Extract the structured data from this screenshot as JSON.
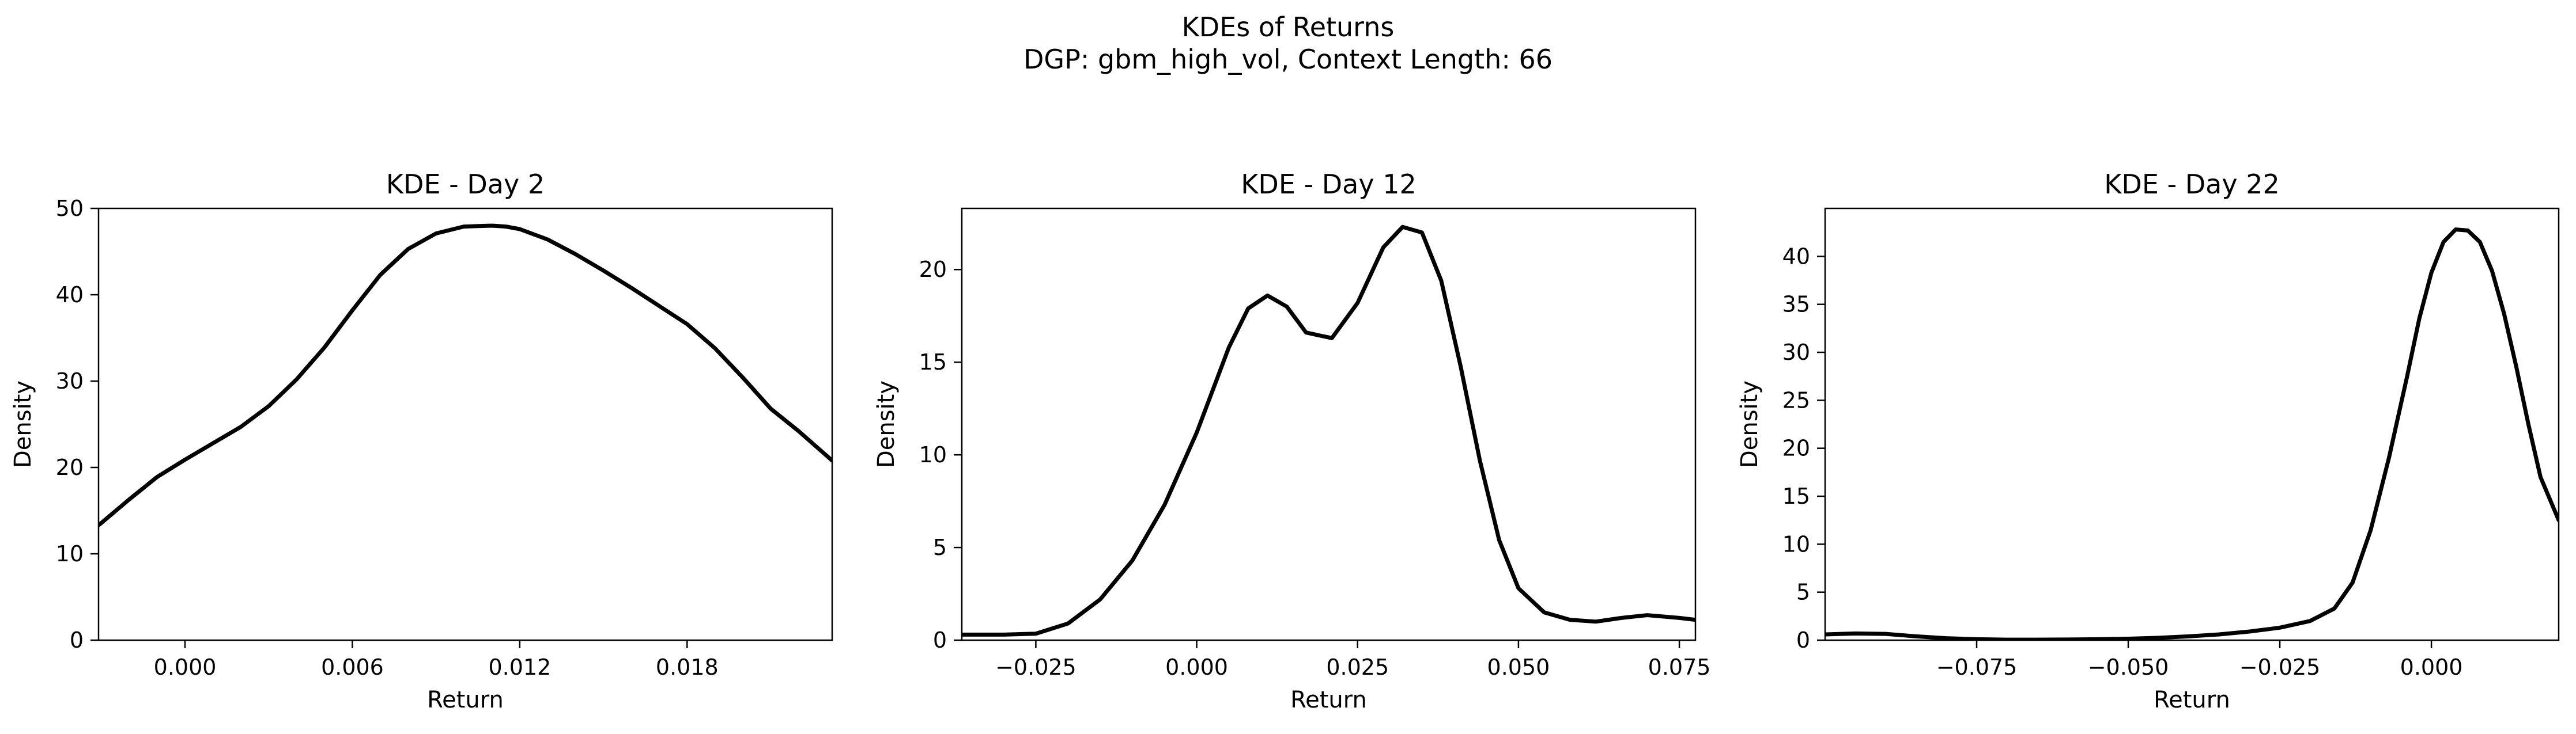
{
  "figure": {
    "title_line1": "KDEs of Returns",
    "title_line2": "DGP: gbm_high_vol, Context Length: 66"
  },
  "chart_data": [
    {
      "type": "line",
      "title": "KDE - Day 2",
      "xlabel": "Return",
      "ylabel": "Density",
      "xlim": [
        -0.0031,
        0.0232
      ],
      "ylim": [
        0,
        50
      ],
      "xticks": [
        0.0,
        0.006,
        0.012,
        0.018
      ],
      "xtick_labels": [
        "0.000",
        "0.006",
        "0.012",
        "0.018"
      ],
      "yticks": [
        0,
        10,
        20,
        30,
        40,
        50
      ],
      "ytick_labels": [
        "0",
        "10",
        "20",
        "30",
        "40",
        "50"
      ],
      "grid": false,
      "series": [
        {
          "color": "#000000",
          "x": [
            -0.0031,
            -0.002,
            -0.001,
            0.0,
            0.001,
            0.002,
            0.003,
            0.004,
            0.005,
            0.006,
            0.007,
            0.008,
            0.009,
            0.01,
            0.011,
            0.0115,
            0.012,
            0.013,
            0.014,
            0.015,
            0.016,
            0.017,
            0.018,
            0.019,
            0.02,
            0.021,
            0.022,
            0.0232
          ],
          "y": [
            13.3,
            16.3,
            18.9,
            20.9,
            22.8,
            24.7,
            27.1,
            30.2,
            33.9,
            38.2,
            42.3,
            45.3,
            47.1,
            47.9,
            48.0,
            47.9,
            47.6,
            46.4,
            44.7,
            42.8,
            40.8,
            38.7,
            36.6,
            33.8,
            30.4,
            26.8,
            24.2,
            20.8
          ]
        }
      ]
    },
    {
      "type": "line",
      "title": "KDE - Day 12",
      "xlabel": "Return",
      "ylabel": "Density",
      "xlim": [
        -0.0365,
        0.0775
      ],
      "ylim": [
        0,
        23.3
      ],
      "xticks": [
        -0.025,
        0.0,
        0.025,
        0.05,
        0.075
      ],
      "xtick_labels": [
        "−0.025",
        "0.000",
        "0.025",
        "0.050",
        "0.075"
      ],
      "yticks": [
        0,
        5,
        10,
        15,
        20
      ],
      "ytick_labels": [
        "0",
        "5",
        "10",
        "15",
        "20"
      ],
      "grid": false,
      "series": [
        {
          "color": "#000000",
          "x": [
            -0.0365,
            -0.03,
            -0.025,
            -0.02,
            -0.015,
            -0.01,
            -0.005,
            0.0,
            0.005,
            0.008,
            0.011,
            0.014,
            0.017,
            0.021,
            0.025,
            0.029,
            0.032,
            0.035,
            0.038,
            0.041,
            0.044,
            0.047,
            0.05,
            0.054,
            0.058,
            0.062,
            0.066,
            0.07,
            0.075,
            0.0775
          ],
          "y": [
            0.3,
            0.3,
            0.35,
            0.9,
            2.2,
            4.3,
            7.3,
            11.2,
            15.8,
            17.9,
            18.6,
            18.0,
            16.6,
            16.3,
            18.2,
            21.2,
            22.3,
            22.0,
            19.4,
            14.8,
            9.7,
            5.4,
            2.8,
            1.5,
            1.1,
            1.0,
            1.2,
            1.35,
            1.2,
            1.1
          ]
        }
      ]
    },
    {
      "type": "line",
      "title": "KDE - Day 22",
      "xlabel": "Return",
      "ylabel": "Density",
      "xlim": [
        -0.1,
        0.021
      ],
      "ylim": [
        0,
        45
      ],
      "xticks": [
        -0.075,
        -0.05,
        -0.025,
        0.0
      ],
      "xtick_labels": [
        "−0.075",
        "−0.050",
        "−0.025",
        "0.000"
      ],
      "yticks": [
        0,
        5,
        10,
        15,
        20,
        25,
        30,
        35,
        40
      ],
      "ytick_labels": [
        "0",
        "5",
        "10",
        "15",
        "20",
        "25",
        "30",
        "35",
        "40"
      ],
      "grid": false,
      "series": [
        {
          "color": "#000000",
          "x": [
            -0.1,
            -0.095,
            -0.09,
            -0.085,
            -0.08,
            -0.075,
            -0.07,
            -0.065,
            -0.06,
            -0.055,
            -0.05,
            -0.045,
            -0.04,
            -0.035,
            -0.03,
            -0.025,
            -0.02,
            -0.016,
            -0.013,
            -0.01,
            -0.007,
            -0.004,
            -0.002,
            0.0,
            0.002,
            0.004,
            0.006,
            0.008,
            0.01,
            0.012,
            0.014,
            0.016,
            0.018,
            0.021
          ],
          "y": [
            0.6,
            0.7,
            0.65,
            0.4,
            0.2,
            0.1,
            0.05,
            0.05,
            0.07,
            0.1,
            0.15,
            0.25,
            0.4,
            0.6,
            0.9,
            1.3,
            2.0,
            3.3,
            6.0,
            11.5,
            19.0,
            27.5,
            33.5,
            38.3,
            41.5,
            42.8,
            42.7,
            41.5,
            38.5,
            34.0,
            28.5,
            22.5,
            17.0,
            12.5
          ]
        }
      ]
    }
  ]
}
